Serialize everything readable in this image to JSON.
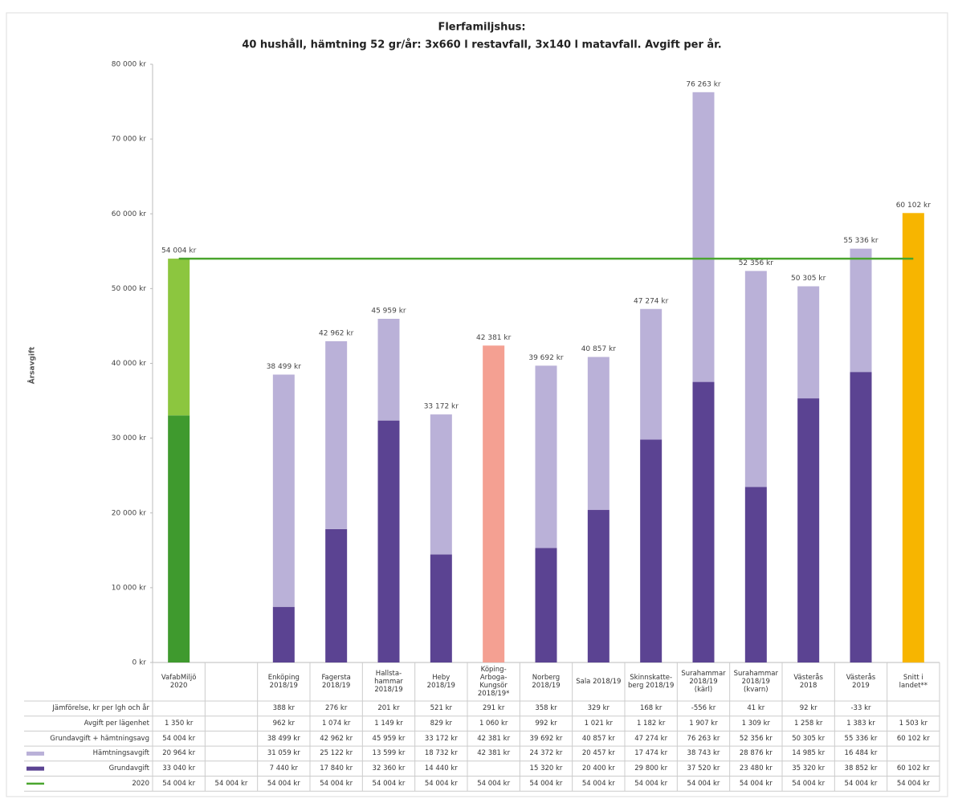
{
  "chart_data": {
    "type": "stacked-bar",
    "title": "Flerfamiljshus:",
    "subtitle": "40 hushåll, hämtning 52 gr/år: 3x660 l restavfall, 3x140 l matavfall. Avgift per år.",
    "y_label": "Årsavgift",
    "categories": [
      "VafabMiljö\n2020",
      null,
      "Enköping\n2018/19",
      "Fagersta\n2018/19",
      "Hallsta-\nhammar\n2018/19",
      "Heby\n2018/19",
      "Köping-\nArboga-\nKungsör\n2018/19*",
      "Norberg\n2018/19",
      "Sala 2018/19",
      "Skinnskatte-\nberg 2018/19",
      "Surahammar\n2018/19\n(kärl)",
      "Surahammar\n2018/19\n(kvarn)",
      "Västerås\n2018",
      "Västerås\n2019",
      "Snitt i\nlandet**"
    ],
    "ylim": [
      0,
      80000
    ],
    "yticks": [
      {
        "value": 0,
        "label": "0 kr"
      },
      {
        "value": 10000,
        "label": "10 000 kr"
      },
      {
        "value": 20000,
        "label": "20 000 kr"
      },
      {
        "value": 30000,
        "label": "30 000 kr"
      },
      {
        "value": 40000,
        "label": "40 000 kr"
      },
      {
        "value": 50000,
        "label": "50 000 kr"
      },
      {
        "value": 60000,
        "label": "60 000 kr"
      },
      {
        "value": 70000,
        "label": "70 000 kr"
      },
      {
        "value": 80000,
        "label": "80 000 kr"
      }
    ],
    "table_rows": [
      {
        "name": "Jämförelse, kr per lgh och år",
        "cells": [
          null,
          null,
          "388 kr",
          "276 kr",
          "201 kr",
          "521 kr",
          "291 kr",
          "358 kr",
          "329 kr",
          "168 kr",
          "-556 kr",
          "41 kr",
          "92 kr",
          "-33 kr",
          null
        ]
      },
      {
        "name": "Avgift per lägenhet",
        "cells": [
          "1 350 kr",
          null,
          "962 kr",
          "1 074 kr",
          "1 149 kr",
          "829 kr",
          "1 060 kr",
          "992 kr",
          "1 021 kr",
          "1 182 kr",
          "1 907 kr",
          "1 309 kr",
          "1 258 kr",
          "1 383 kr",
          "1 503 kr"
        ]
      }
    ],
    "series": [
      {
        "name": "Grundavgift + hämtningsavg",
        "type": "total-label",
        "values": [
          54004,
          null,
          38499,
          42962,
          45959,
          33172,
          42381,
          39692,
          40857,
          47274,
          76263,
          52356,
          50305,
          55336,
          60102
        ],
        "value_labels": [
          "54 004 kr",
          null,
          "38 499 kr",
          "42 962 kr",
          "45 959 kr",
          "33 172 kr",
          "42 381 kr",
          "39 692 kr",
          "40 857 kr",
          "47 274 kr",
          "76 263 kr",
          "52 356 kr",
          "50 305 kr",
          "55 336 kr",
          "60 102 kr"
        ]
      },
      {
        "name": "Hämtningsavgift",
        "type": "bar",
        "color": "#bab1d8",
        "colors": [
          "#8cc63f",
          null,
          "#bab1d8",
          "#bab1d8",
          "#bab1d8",
          "#bab1d8",
          "#f4a092",
          "#bab1d8",
          "#bab1d8",
          "#bab1d8",
          "#bab1d8",
          "#bab1d8",
          "#bab1d8",
          "#bab1d8",
          null
        ],
        "values": [
          20964,
          null,
          31059,
          25122,
          13599,
          18732,
          42381,
          24372,
          20457,
          17474,
          38743,
          28876,
          14985,
          16484,
          null
        ],
        "value_labels": [
          "20 964 kr",
          null,
          "31 059 kr",
          "25 122 kr",
          "13 599 kr",
          "18 732 kr",
          "42 381 kr",
          "24 372 kr",
          "20 457 kr",
          "17 474 kr",
          "38 743 kr",
          "28 876 kr",
          "14 985 kr",
          "16 484 kr",
          null
        ]
      },
      {
        "name": "Grundavgift",
        "type": "bar",
        "color": "#5b4392",
        "colors": [
          "#3f9a2e",
          null,
          "#5b4392",
          "#5b4392",
          "#5b4392",
          "#5b4392",
          null,
          "#5b4392",
          "#5b4392",
          "#5b4392",
          "#5b4392",
          "#5b4392",
          "#5b4392",
          "#5b4392",
          "#f7b500"
        ],
        "values": [
          33040,
          null,
          7440,
          17840,
          32360,
          14440,
          null,
          15320,
          20400,
          29800,
          37520,
          23480,
          35320,
          38852,
          60102
        ],
        "value_labels": [
          "33 040 kr",
          null,
          "7 440 kr",
          "17 840 kr",
          "32 360 kr",
          "14 440 kr",
          null,
          "15 320 kr",
          "20 400 kr",
          "29 800 kr",
          "37 520 kr",
          "23 480 kr",
          "35 320 kr",
          "38 852 kr",
          "60 102 kr"
        ]
      },
      {
        "name": "2020",
        "type": "line",
        "color": "#4aa52e",
        "values": [
          54004,
          54004,
          54004,
          54004,
          54004,
          54004,
          54004,
          54004,
          54004,
          54004,
          54004,
          54004,
          54004,
          54004,
          54004
        ],
        "value_labels": [
          "54 004 kr",
          "54 004 kr",
          "54 004 kr",
          "54 004 kr",
          "54 004 kr",
          "54 004 kr",
          "54 004 kr",
          "54 004 kr",
          "54 004 kr",
          "54 004 kr",
          "54 004 kr",
          "54 004 kr",
          "54 004 kr",
          "54 004 kr",
          "54 004 kr"
        ]
      }
    ]
  }
}
